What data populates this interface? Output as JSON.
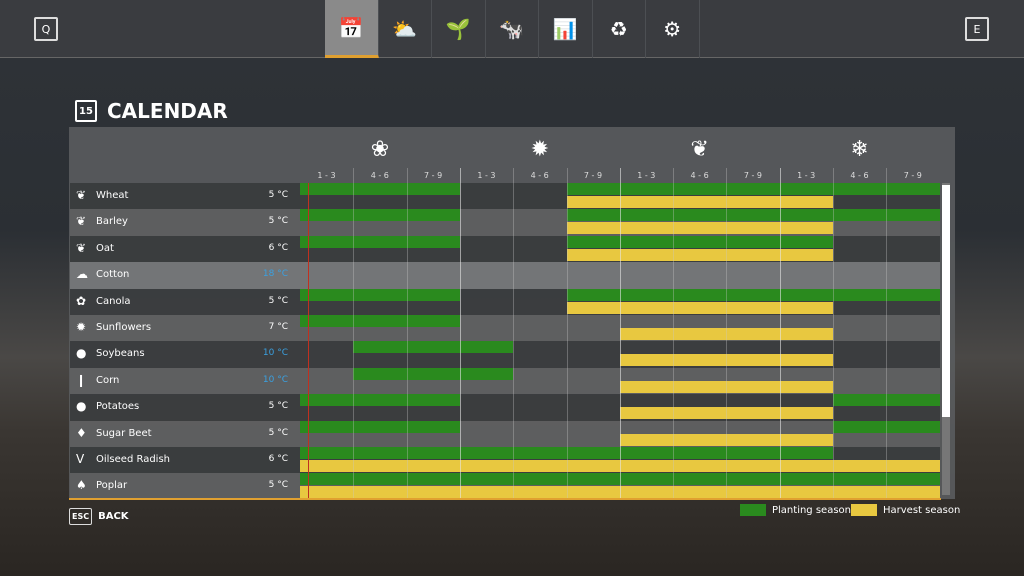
{
  "topbar": {
    "left_key": "Q",
    "right_key": "E",
    "tabs": [
      {
        "icon": "calendar-icon",
        "glyph": "📅"
      },
      {
        "icon": "weather-icon",
        "glyph": "⛅"
      },
      {
        "icon": "plant-icon",
        "glyph": "🌱"
      },
      {
        "icon": "cow-icon",
        "glyph": "🐄"
      },
      {
        "icon": "chart-icon",
        "glyph": "📊"
      },
      {
        "icon": "cycle-icon",
        "glyph": "♻"
      },
      {
        "icon": "settings-icon",
        "glyph": "⚙"
      }
    ]
  },
  "title": "CALENDAR",
  "title_icon_text": "15",
  "seasons": [
    {
      "icon": "spring-flower-icon",
      "glyph": "❀"
    },
    {
      "icon": "summer-sun-icon",
      "glyph": "✹"
    },
    {
      "icon": "autumn-leaf-icon",
      "glyph": "❦"
    },
    {
      "icon": "winter-snowflake-icon",
      "glyph": "❄"
    }
  ],
  "months": [
    "1 - 3",
    "4 - 6",
    "7 - 9",
    "1 - 3",
    "4 - 6",
    "7 - 9",
    "1 - 3",
    "4 - 6",
    "7 - 9",
    "1 - 3",
    "4 - 6",
    "7 - 9"
  ],
  "colors": {
    "planting": "#2a8a1e",
    "harvest": "#e8c840",
    "warm_temp": "#3aa0e0",
    "accent": "#e0a030"
  },
  "crops": [
    {
      "name": "Wheat",
      "temp": "5 °C",
      "warm": false,
      "glyph": "❦",
      "plant": [
        [
          0,
          2
        ],
        [
          5,
          11
        ]
      ],
      "harvest": [
        [
          5,
          9
        ]
      ]
    },
    {
      "name": "Barley",
      "temp": "5 °C",
      "warm": false,
      "glyph": "❦",
      "plant": [
        [
          0,
          2
        ],
        [
          5,
          11
        ]
      ],
      "harvest": [
        [
          5,
          9
        ]
      ]
    },
    {
      "name": "Oat",
      "temp": "6 °C",
      "warm": false,
      "glyph": "❦",
      "plant": [
        [
          0,
          2
        ],
        [
          5,
          9
        ]
      ],
      "harvest": [
        [
          5,
          9
        ]
      ]
    },
    {
      "name": "Cotton",
      "temp": "18 °C",
      "warm": true,
      "glyph": "☁",
      "plant": [],
      "harvest": []
    },
    {
      "name": "Canola",
      "temp": "5 °C",
      "warm": false,
      "glyph": "✿",
      "plant": [
        [
          0,
          2
        ],
        [
          5,
          11
        ]
      ],
      "harvest": [
        [
          5,
          9
        ]
      ]
    },
    {
      "name": "Sunflowers",
      "temp": "7 °C",
      "warm": false,
      "glyph": "✹",
      "plant": [
        [
          0,
          2
        ]
      ],
      "harvest": [
        [
          6,
          9
        ]
      ]
    },
    {
      "name": "Soybeans",
      "temp": "10 °C",
      "warm": true,
      "glyph": "●",
      "plant": [
        [
          1,
          3
        ]
      ],
      "harvest": [
        [
          6,
          9
        ]
      ]
    },
    {
      "name": "Corn",
      "temp": "10 °C",
      "warm": true,
      "glyph": "❙",
      "plant": [
        [
          1,
          3
        ]
      ],
      "harvest": [
        [
          6,
          9
        ]
      ]
    },
    {
      "name": "Potatoes",
      "temp": "5 °C",
      "warm": false,
      "glyph": "●",
      "plant": [
        [
          0,
          2
        ],
        [
          10,
          11
        ]
      ],
      "harvest": [
        [
          6,
          9
        ]
      ]
    },
    {
      "name": "Sugar Beet",
      "temp": "5 °C",
      "warm": false,
      "glyph": "♦",
      "plant": [
        [
          0,
          2
        ],
        [
          10,
          11
        ]
      ],
      "harvest": [
        [
          6,
          9
        ]
      ]
    },
    {
      "name": "Oilseed Radish",
      "temp": "6 °C",
      "warm": false,
      "glyph": "V",
      "plant": [
        [
          0,
          9
        ]
      ],
      "harvest": [
        [
          0,
          11
        ]
      ]
    },
    {
      "name": "Poplar",
      "temp": "5 °C",
      "warm": false,
      "glyph": "♠",
      "plant": [
        [
          0,
          11
        ]
      ],
      "harvest": [
        [
          0,
          11
        ]
      ]
    }
  ],
  "footer": {
    "esc_key": "ESC",
    "back_label": "BACK",
    "legend_planting": "Planting season",
    "legend_harvest": "Harvest season"
  }
}
